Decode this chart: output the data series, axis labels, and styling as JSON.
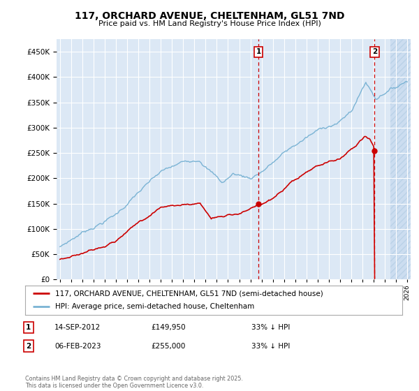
{
  "title": "117, ORCHARD AVENUE, CHELTENHAM, GL51 7ND",
  "subtitle": "Price paid vs. HM Land Registry's House Price Index (HPI)",
  "hpi_label": "HPI: Average price, semi-detached house, Cheltenham",
  "property_label": "117, ORCHARD AVENUE, CHELTENHAM, GL51 7ND (semi-detached house)",
  "hpi_color": "#7ab3d4",
  "property_color": "#cc0000",
  "dashed_color": "#cc0000",
  "background_color": "#ffffff",
  "plot_bg_color": "#dce8f5",
  "hatch_bg_color": "#ccddf0",
  "grid_color": "#ffffff",
  "ylim": [
    0,
    475000
  ],
  "yticks": [
    0,
    50000,
    100000,
    150000,
    200000,
    250000,
    300000,
    350000,
    400000,
    450000
  ],
  "sale1_year": 2012.71,
  "sale1_price": 149950,
  "sale1_label": "1",
  "sale1_date": "14-SEP-2012",
  "sale1_price_str": "£149,950",
  "sale1_hpi_pct": "33% ↓ HPI",
  "sale2_year": 2023.09,
  "sale2_price": 255000,
  "sale2_label": "2",
  "sale2_date": "06-FEB-2023",
  "sale2_price_str": "£255,000",
  "sale2_hpi_pct": "33% ↓ HPI",
  "footer": "Contains HM Land Registry data © Crown copyright and database right 2025.\nThis data is licensed under the Open Government Licence v3.0.",
  "future_start_year": 2024.5,
  "xlim_left": 1994.7,
  "xlim_right": 2026.3
}
